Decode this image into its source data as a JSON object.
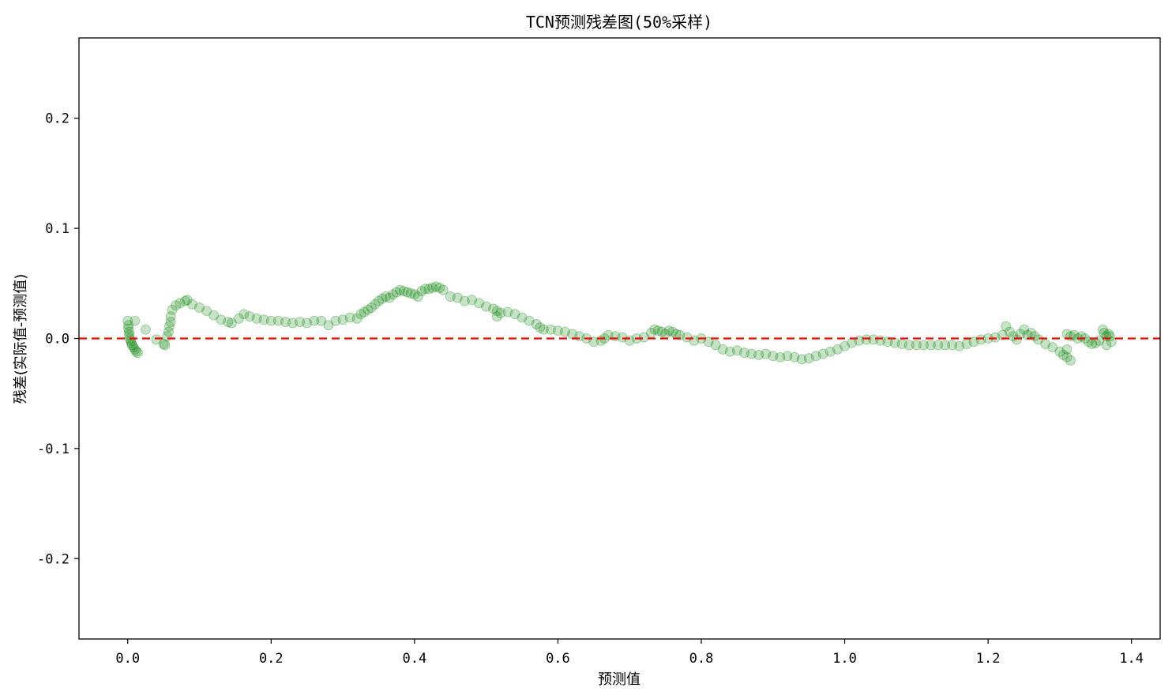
{
  "chart_data": {
    "type": "scatter",
    "title": "TCN预测残差图(50%采样)",
    "xlabel": "预测值",
    "ylabel": "残差(实际值-预测值)",
    "xlim": [
      -0.068,
      1.44
    ],
    "ylim": [
      -0.273,
      0.273
    ],
    "xticks": [
      0.0,
      0.2,
      0.4,
      0.6,
      0.8,
      1.0,
      1.2,
      1.4
    ],
    "xtick_labels": [
      "0.0",
      "0.2",
      "0.4",
      "0.6",
      "0.8",
      "1.0",
      "1.2",
      "1.4"
    ],
    "yticks": [
      -0.2,
      -0.1,
      0.0,
      0.1,
      0.2
    ],
    "ytick_labels": [
      "-0.2",
      "-0.1",
      "0.0",
      "0.1",
      "0.2"
    ],
    "grid": false,
    "reference_line": {
      "y": 0.0,
      "color": "#ff0000",
      "style": "dashed"
    },
    "point_color": "#008000",
    "point_alpha": 0.22,
    "series": [
      {
        "points": [
          [
            0.0,
            0.016
          ],
          [
            0.001,
            0.012
          ],
          [
            0.001,
            0.009
          ],
          [
            0.002,
            0.006
          ],
          [
            0.002,
            0.003
          ],
          [
            0.003,
            0.0
          ],
          [
            0.004,
            -0.002
          ],
          [
            0.005,
            -0.004
          ],
          [
            0.006,
            -0.006
          ],
          [
            0.008,
            -0.008
          ],
          [
            0.01,
            -0.01
          ],
          [
            0.012,
            -0.012
          ],
          [
            0.014,
            -0.013
          ],
          [
            0.01,
            0.016
          ],
          [
            0.025,
            0.008
          ],
          [
            0.04,
            -0.001
          ],
          [
            0.05,
            -0.005
          ],
          [
            0.052,
            -0.006
          ],
          [
            0.055,
            0.002
          ],
          [
            0.057,
            0.006
          ],
          [
            0.058,
            0.011
          ],
          [
            0.06,
            0.015
          ],
          [
            0.06,
            0.02
          ],
          [
            0.062,
            0.026
          ],
          [
            0.067,
            0.03
          ],
          [
            0.073,
            0.032
          ],
          [
            0.08,
            0.034
          ],
          [
            0.083,
            0.035
          ],
          [
            0.09,
            0.031
          ],
          [
            0.1,
            0.028
          ],
          [
            0.11,
            0.025
          ],
          [
            0.12,
            0.021
          ],
          [
            0.13,
            0.017
          ],
          [
            0.14,
            0.015
          ],
          [
            0.145,
            0.014
          ],
          [
            0.155,
            0.018
          ],
          [
            0.162,
            0.022
          ],
          [
            0.17,
            0.02
          ],
          [
            0.18,
            0.018
          ],
          [
            0.19,
            0.017
          ],
          [
            0.2,
            0.016
          ],
          [
            0.21,
            0.016
          ],
          [
            0.22,
            0.015
          ],
          [
            0.23,
            0.014
          ],
          [
            0.24,
            0.015
          ],
          [
            0.25,
            0.014
          ],
          [
            0.26,
            0.016
          ],
          [
            0.27,
            0.016
          ],
          [
            0.28,
            0.012
          ],
          [
            0.29,
            0.016
          ],
          [
            0.3,
            0.017
          ],
          [
            0.31,
            0.019
          ],
          [
            0.32,
            0.018
          ],
          [
            0.325,
            0.022
          ],
          [
            0.33,
            0.024
          ],
          [
            0.335,
            0.026
          ],
          [
            0.34,
            0.028
          ],
          [
            0.345,
            0.031
          ],
          [
            0.35,
            0.034
          ],
          [
            0.355,
            0.036
          ],
          [
            0.36,
            0.038
          ],
          [
            0.365,
            0.037
          ],
          [
            0.37,
            0.04
          ],
          [
            0.375,
            0.042
          ],
          [
            0.38,
            0.044
          ],
          [
            0.385,
            0.043
          ],
          [
            0.39,
            0.042
          ],
          [
            0.395,
            0.041
          ],
          [
            0.4,
            0.04
          ],
          [
            0.405,
            0.038
          ],
          [
            0.41,
            0.043
          ],
          [
            0.415,
            0.045
          ],
          [
            0.42,
            0.045
          ],
          [
            0.425,
            0.046
          ],
          [
            0.43,
            0.047
          ],
          [
            0.435,
            0.046
          ],
          [
            0.44,
            0.044
          ],
          [
            0.45,
            0.038
          ],
          [
            0.46,
            0.037
          ],
          [
            0.47,
            0.034
          ],
          [
            0.48,
            0.035
          ],
          [
            0.49,
            0.032
          ],
          [
            0.5,
            0.029
          ],
          [
            0.51,
            0.027
          ],
          [
            0.515,
            0.025
          ],
          [
            0.515,
            0.02
          ],
          [
            0.52,
            0.023
          ],
          [
            0.53,
            0.024
          ],
          [
            0.54,
            0.022
          ],
          [
            0.55,
            0.019
          ],
          [
            0.56,
            0.016
          ],
          [
            0.57,
            0.013
          ],
          [
            0.575,
            0.01
          ],
          [
            0.58,
            0.008
          ],
          [
            0.59,
            0.008
          ],
          [
            0.6,
            0.007
          ],
          [
            0.61,
            0.006
          ],
          [
            0.62,
            0.004
          ],
          [
            0.63,
            0.002
          ],
          [
            0.64,
            0.0
          ],
          [
            0.65,
            -0.003
          ],
          [
            0.66,
            -0.002
          ],
          [
            0.665,
            0.0
          ],
          [
            0.67,
            0.003
          ],
          [
            0.68,
            0.002
          ],
          [
            0.69,
            0.001
          ],
          [
            0.7,
            -0.002
          ],
          [
            0.71,
            0.0
          ],
          [
            0.72,
            0.001
          ],
          [
            0.73,
            0.005
          ],
          [
            0.735,
            0.008
          ],
          [
            0.74,
            0.007
          ],
          [
            0.745,
            0.006
          ],
          [
            0.75,
            0.004
          ],
          [
            0.755,
            0.007
          ],
          [
            0.76,
            0.006
          ],
          [
            0.765,
            0.004
          ],
          [
            0.77,
            0.003
          ],
          [
            0.78,
            0.001
          ],
          [
            0.79,
            -0.002
          ],
          [
            0.8,
            0.0
          ],
          [
            0.81,
            -0.003
          ],
          [
            0.82,
            -0.006
          ],
          [
            0.83,
            -0.01
          ],
          [
            0.84,
            -0.012
          ],
          [
            0.85,
            -0.011
          ],
          [
            0.86,
            -0.013
          ],
          [
            0.87,
            -0.014
          ],
          [
            0.88,
            -0.015
          ],
          [
            0.89,
            -0.014
          ],
          [
            0.9,
            -0.016
          ],
          [
            0.91,
            -0.017
          ],
          [
            0.92,
            -0.016
          ],
          [
            0.93,
            -0.017
          ],
          [
            0.94,
            -0.019
          ],
          [
            0.95,
            -0.018
          ],
          [
            0.96,
            -0.016
          ],
          [
            0.97,
            -0.014
          ],
          [
            0.98,
            -0.012
          ],
          [
            0.99,
            -0.01
          ],
          [
            1.0,
            -0.007
          ],
          [
            1.01,
            -0.004
          ],
          [
            1.02,
            -0.002
          ],
          [
            1.03,
            -0.001
          ],
          [
            1.04,
            -0.001
          ],
          [
            1.05,
            -0.002
          ],
          [
            1.06,
            -0.003
          ],
          [
            1.07,
            -0.004
          ],
          [
            1.08,
            -0.005
          ],
          [
            1.09,
            -0.006
          ],
          [
            1.1,
            -0.006
          ],
          [
            1.11,
            -0.006
          ],
          [
            1.12,
            -0.006
          ],
          [
            1.13,
            -0.006
          ],
          [
            1.14,
            -0.006
          ],
          [
            1.15,
            -0.006
          ],
          [
            1.16,
            -0.007
          ],
          [
            1.17,
            -0.005
          ],
          [
            1.18,
            -0.003
          ],
          [
            1.19,
            -0.001
          ],
          [
            1.2,
            0.0
          ],
          [
            1.21,
            0.001
          ],
          [
            1.22,
            0.003
          ],
          [
            1.225,
            0.011
          ],
          [
            1.23,
            0.006
          ],
          [
            1.235,
            0.002
          ],
          [
            1.24,
            -0.001
          ],
          [
            1.245,
            0.004
          ],
          [
            1.25,
            0.008
          ],
          [
            1.255,
            0.003
          ],
          [
            1.26,
            0.005
          ],
          [
            1.265,
            0.002
          ],
          [
            1.27,
            -0.001
          ],
          [
            1.28,
            -0.005
          ],
          [
            1.29,
            -0.008
          ],
          [
            1.3,
            -0.012
          ],
          [
            1.305,
            -0.015
          ],
          [
            1.31,
            -0.017
          ],
          [
            1.315,
            -0.02
          ],
          [
            1.31,
            -0.01
          ],
          [
            1.31,
            0.004
          ],
          [
            1.315,
            0.002
          ],
          [
            1.32,
            0.003
          ],
          [
            1.325,
            0.0
          ],
          [
            1.33,
            0.002
          ],
          [
            1.335,
            0.0
          ],
          [
            1.34,
            -0.003
          ],
          [
            1.345,
            -0.005
          ],
          [
            1.35,
            -0.004
          ],
          [
            1.355,
            -0.002
          ],
          [
            1.36,
            0.008
          ],
          [
            1.362,
            0.005
          ],
          [
            1.365,
            0.002
          ],
          [
            1.365,
            -0.006
          ],
          [
            1.368,
            0.004
          ],
          [
            1.37,
            0.002
          ],
          [
            1.372,
            -0.003
          ]
        ]
      }
    ]
  }
}
